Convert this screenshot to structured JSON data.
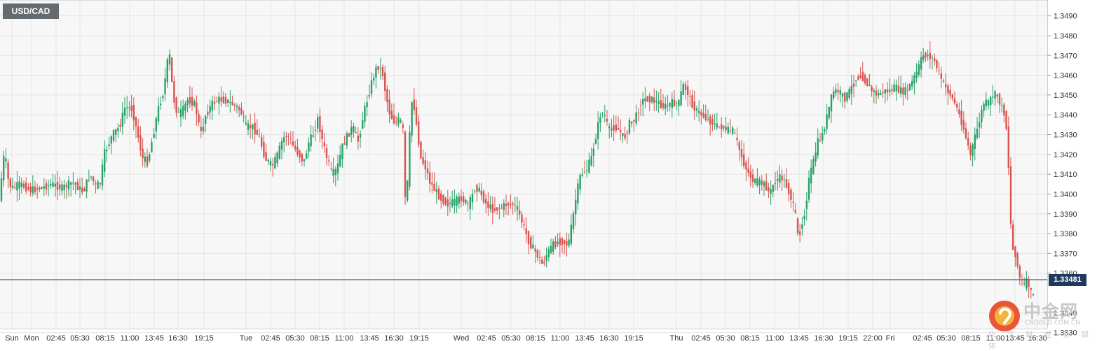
{
  "symbol": "USD/CAD",
  "current_price_label": "1.33481",
  "watermark": {
    "title": "中金网",
    "url": "CNGOLD.COM.CN",
    "subtitle": "中 文 财 经 新 媒 体"
  },
  "colors": {
    "up": "#26a269",
    "down": "#d9534f",
    "grid": "#e4e4e4",
    "price_line": "#1f3a5a",
    "plot_bg": "#f7f7f7"
  },
  "chart_data": {
    "type": "candlestick",
    "title": "",
    "xlabel": "",
    "ylabel": "",
    "ylim": [
      1.3332,
      1.3498
    ],
    "y_ticks": [
      "1.3490",
      "1.3480",
      "1.3470",
      "1.3460",
      "1.3450",
      "1.3440",
      "1.3430",
      "1.3420",
      "1.3410",
      "1.3400",
      "1.3390",
      "1.3380",
      "1.3370",
      "1.3360",
      "1.3340",
      "1.3330"
    ],
    "grid": true,
    "current_price": 1.33481,
    "x_labels": [
      "Sun",
      "Mon",
      "02:45",
      "05:30",
      "08:15",
      "11:00",
      "13:45",
      "16:30",
      "19:15",
      "Tue",
      "02:45",
      "05:30",
      "08:15",
      "11:00",
      "13:45",
      "16:30",
      "19:15",
      "Wed",
      "02:45",
      "05:30",
      "08:15",
      "11:00",
      "13:45",
      "16:30",
      "19:15",
      "Thu",
      "02:45",
      "05:30",
      "08:15",
      "11:00",
      "13:45",
      "16:30",
      "19:15",
      "22:00",
      "Fri",
      "02:45",
      "05:30",
      "08:15",
      "11:00",
      "13:45",
      "16:30"
    ],
    "anchors": [
      [
        0,
        1.3395
      ],
      [
        3,
        1.3406
      ],
      [
        8,
        1.3422
      ],
      [
        14,
        1.3405
      ],
      [
        20,
        1.3403
      ],
      [
        30,
        1.3405
      ],
      [
        45,
        1.3402
      ],
      [
        60,
        1.3403
      ],
      [
        75,
        1.3405
      ],
      [
        90,
        1.3403
      ],
      [
        105,
        1.3406
      ],
      [
        120,
        1.3401
      ],
      [
        130,
        1.341
      ],
      [
        138,
        1.3404
      ],
      [
        145,
        1.3406
      ],
      [
        150,
        1.342
      ],
      [
        162,
        1.343
      ],
      [
        172,
        1.3434
      ],
      [
        180,
        1.3444
      ],
      [
        190,
        1.3443
      ],
      [
        198,
        1.343
      ],
      [
        205,
        1.3418
      ],
      [
        212,
        1.3416
      ],
      [
        220,
        1.343
      ],
      [
        228,
        1.3444
      ],
      [
        235,
        1.3452
      ],
      [
        240,
        1.3466
      ],
      [
        244,
        1.347
      ],
      [
        248,
        1.345
      ],
      [
        255,
        1.344
      ],
      [
        262,
        1.3442
      ],
      [
        270,
        1.3448
      ],
      [
        280,
        1.3445
      ],
      [
        288,
        1.343
      ],
      [
        295,
        1.344
      ],
      [
        305,
        1.3446
      ],
      [
        315,
        1.3448
      ],
      [
        325,
        1.3447
      ],
      [
        335,
        1.3445
      ],
      [
        345,
        1.3442
      ],
      [
        352,
        1.3434
      ],
      [
        362,
        1.3434
      ],
      [
        372,
        1.3428
      ],
      [
        380,
        1.3418
      ],
      [
        390,
        1.3414
      ],
      [
        398,
        1.342
      ],
      [
        405,
        1.3428
      ],
      [
        412,
        1.343
      ],
      [
        420,
        1.3424
      ],
      [
        428,
        1.342
      ],
      [
        435,
        1.3416
      ],
      [
        442,
        1.3426
      ],
      [
        448,
        1.343
      ],
      [
        455,
        1.3438
      ],
      [
        462,
        1.3426
      ],
      [
        468,
        1.3418
      ],
      [
        475,
        1.341
      ],
      [
        482,
        1.3412
      ],
      [
        490,
        1.3424
      ],
      [
        498,
        1.343
      ],
      [
        505,
        1.3434
      ],
      [
        512,
        1.3426
      ],
      [
        520,
        1.344
      ],
      [
        527,
        1.345
      ],
      [
        533,
        1.3458
      ],
      [
        540,
        1.3465
      ],
      [
        547,
        1.3462
      ],
      [
        552,
        1.345
      ],
      [
        558,
        1.344
      ],
      [
        565,
        1.3436
      ],
      [
        572,
        1.3438
      ],
      [
        578,
        1.343
      ],
      [
        580,
        1.339
      ],
      [
        584,
        1.3412
      ],
      [
        588,
        1.3447
      ],
      [
        592,
        1.3445
      ],
      [
        596,
        1.3434
      ],
      [
        602,
        1.3418
      ],
      [
        608,
        1.3414
      ],
      [
        615,
        1.3406
      ],
      [
        622,
        1.3402
      ],
      [
        630,
        1.3398
      ],
      [
        640,
        1.3395
      ],
      [
        650,
        1.3396
      ],
      [
        660,
        1.3398
      ],
      [
        670,
        1.3394
      ],
      [
        680,
        1.3404
      ],
      [
        688,
        1.34
      ],
      [
        695,
        1.3395
      ],
      [
        705,
        1.3392
      ],
      [
        715,
        1.3393
      ],
      [
        725,
        1.3395
      ],
      [
        733,
        1.3395
      ],
      [
        740,
        1.3392
      ],
      [
        748,
        1.3384
      ],
      [
        756,
        1.3376
      ],
      [
        763,
        1.3372
      ],
      [
        770,
        1.3368
      ],
      [
        776,
        1.3364
      ],
      [
        782,
        1.337
      ],
      [
        790,
        1.3374
      ],
      [
        798,
        1.3376
      ],
      [
        805,
        1.3376
      ],
      [
        812,
        1.3374
      ],
      [
        818,
        1.3386
      ],
      [
        824,
        1.34
      ],
      [
        830,
        1.341
      ],
      [
        838,
        1.3412
      ],
      [
        845,
        1.3418
      ],
      [
        852,
        1.343
      ],
      [
        858,
        1.344
      ],
      [
        864,
        1.344
      ],
      [
        870,
        1.3432
      ],
      [
        878,
        1.3434
      ],
      [
        885,
        1.3432
      ],
      [
        892,
        1.3428
      ],
      [
        900,
        1.3436
      ],
      [
        908,
        1.3438
      ],
      [
        915,
        1.3446
      ],
      [
        922,
        1.3448
      ],
      [
        930,
        1.3448
      ],
      [
        940,
        1.3446
      ],
      [
        950,
        1.3444
      ],
      [
        960,
        1.3446
      ],
      [
        970,
        1.3446
      ],
      [
        976,
        1.3455
      ],
      [
        982,
        1.3452
      ],
      [
        988,
        1.3446
      ],
      [
        995,
        1.3442
      ],
      [
        1003,
        1.344
      ],
      [
        1010,
        1.3438
      ],
      [
        1018,
        1.3436
      ],
      [
        1025,
        1.3434
      ],
      [
        1032,
        1.3434
      ],
      [
        1040,
        1.3432
      ],
      [
        1048,
        1.3432
      ],
      [
        1055,
        1.3424
      ],
      [
        1062,
        1.3416
      ],
      [
        1070,
        1.341
      ],
      [
        1078,
        1.3406
      ],
      [
        1086,
        1.3406
      ],
      [
        1094,
        1.3404
      ],
      [
        1100,
        1.34
      ],
      [
        1106,
        1.3406
      ],
      [
        1112,
        1.3408
      ],
      [
        1118,
        1.3408
      ],
      [
        1124,
        1.3404
      ],
      [
        1130,
        1.3398
      ],
      [
        1136,
        1.339
      ],
      [
        1140,
        1.3378
      ],
      [
        1145,
        1.3384
      ],
      [
        1150,
        1.3392
      ],
      [
        1156,
        1.3408
      ],
      [
        1162,
        1.3416
      ],
      [
        1168,
        1.3426
      ],
      [
        1175,
        1.343
      ],
      [
        1182,
        1.344
      ],
      [
        1190,
        1.3452
      ],
      [
        1198,
        1.3452
      ],
      [
        1206,
        1.3448
      ],
      [
        1214,
        1.3452
      ],
      [
        1222,
        1.3458
      ],
      [
        1230,
        1.346
      ],
      [
        1238,
        1.3456
      ],
      [
        1246,
        1.3452
      ],
      [
        1254,
        1.345
      ],
      [
        1262,
        1.3452
      ],
      [
        1270,
        1.3452
      ],
      [
        1278,
        1.3454
      ],
      [
        1286,
        1.3452
      ],
      [
        1294,
        1.3452
      ],
      [
        1302,
        1.3456
      ],
      [
        1310,
        1.3462
      ],
      [
        1318,
        1.347
      ],
      [
        1326,
        1.347
      ],
      [
        1334,
        1.3468
      ],
      [
        1342,
        1.346
      ],
      [
        1350,
        1.3454
      ],
      [
        1358,
        1.345
      ],
      [
        1366,
        1.3444
      ],
      [
        1374,
        1.3436
      ],
      [
        1380,
        1.3428
      ],
      [
        1386,
        1.342
      ],
      [
        1392,
        1.3428
      ],
      [
        1398,
        1.3436
      ],
      [
        1405,
        1.3446
      ],
      [
        1412,
        1.3446
      ],
      [
        1418,
        1.345
      ],
      [
        1424,
        1.345
      ],
      [
        1430,
        1.3444
      ],
      [
        1436,
        1.344
      ],
      [
        1440,
        1.3418
      ],
      [
        1443,
        1.3388
      ],
      [
        1446,
        1.3372
      ],
      [
        1450,
        1.337
      ],
      [
        1456,
        1.3358
      ],
      [
        1462,
        1.3354
      ],
      [
        1468,
        1.3356
      ],
      [
        1472,
        1.335
      ],
      [
        1476,
        1.33481
      ]
    ]
  }
}
